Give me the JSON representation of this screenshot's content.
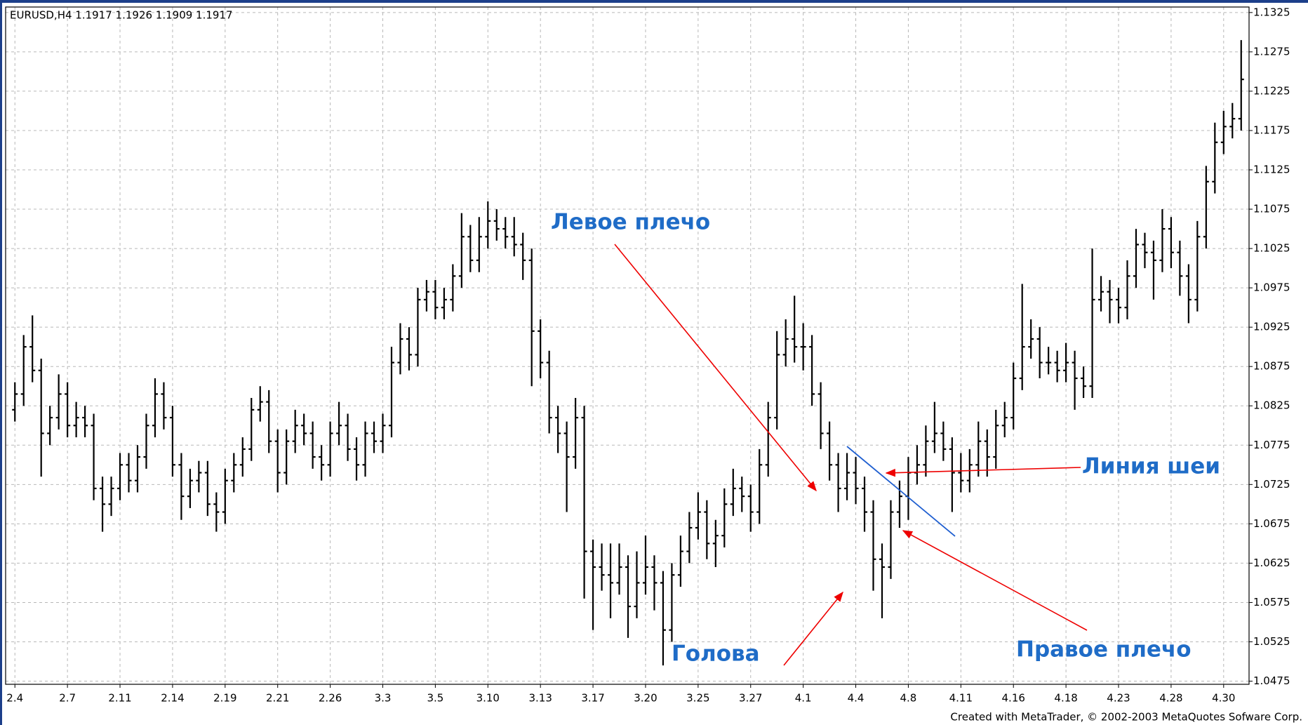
{
  "chart_data": {
    "type": "ohlc",
    "header": "EURUSD,H4  1.1917 1.1926 1.1909 1.1917",
    "footer": "Created with MetaTrader, © 2002-2003 MetaQuotes Sofware Corp.",
    "annotations": [
      "Левое плечо",
      "Голова",
      "Правое плечо",
      "Линия шеи"
    ],
    "color": "#000000",
    "grid": true,
    "ylim": [
      1.0471,
      1.1332
    ],
    "yticks": [
      1.0475,
      1.0525,
      1.0575,
      1.0625,
      1.0675,
      1.0725,
      1.0775,
      1.0825,
      1.0875,
      1.0925,
      1.0975,
      1.1025,
      1.1075,
      1.1125,
      1.1175,
      1.1225,
      1.1275,
      1.1325
    ],
    "categories": [
      "2.4",
      null,
      null,
      null,
      null,
      null,
      "2.7",
      null,
      null,
      null,
      null,
      null,
      "2.11",
      null,
      null,
      null,
      null,
      null,
      "2.14",
      null,
      null,
      null,
      null,
      null,
      "2.19",
      null,
      null,
      null,
      null,
      null,
      "2.21",
      null,
      null,
      null,
      null,
      null,
      "2.26",
      null,
      null,
      null,
      null,
      null,
      "3.3",
      null,
      null,
      null,
      null,
      null,
      "3.5",
      null,
      null,
      null,
      null,
      null,
      "3.10",
      null,
      null,
      null,
      null,
      null,
      "3.13",
      null,
      null,
      null,
      null,
      null,
      "3.17",
      null,
      null,
      null,
      null,
      null,
      "3.20",
      null,
      null,
      null,
      null,
      null,
      "3.25",
      null,
      null,
      null,
      null,
      null,
      "3.27",
      null,
      null,
      null,
      null,
      null,
      "4.1",
      null,
      null,
      null,
      null,
      null,
      "4.4",
      null,
      null,
      null,
      null,
      null,
      "4.8",
      null,
      null,
      null,
      null,
      null,
      "4.11",
      null,
      null,
      null,
      null,
      null,
      "4.16",
      null,
      null,
      null,
      null,
      null,
      "4.18",
      null,
      null,
      null,
      null,
      null,
      "4.23",
      null,
      null,
      null,
      null,
      null,
      "4.28",
      null,
      null,
      null,
      null,
      null,
      "4.30",
      null,
      null
    ],
    "open": [
      1.082,
      1.084,
      1.09,
      1.087,
      1.079,
      1.081,
      1.084,
      1.08,
      1.081,
      1.08,
      1.072,
      1.07,
      1.072,
      1.075,
      1.073,
      1.076,
      1.08,
      1.084,
      1.081,
      1.075,
      1.071,
      1.073,
      1.074,
      1.07,
      1.069,
      1.073,
      1.075,
      1.077,
      1.082,
      1.083,
      1.078,
      1.074,
      1.078,
      1.08,
      1.079,
      1.076,
      1.075,
      1.079,
      1.08,
      1.077,
      1.075,
      1.079,
      1.078,
      1.08,
      1.088,
      1.091,
      1.089,
      1.096,
      1.097,
      1.095,
      1.096,
      1.099,
      1.104,
      1.101,
      1.104,
      1.106,
      1.105,
      1.104,
      1.103,
      1.101,
      1.092,
      1.088,
      1.081,
      1.079,
      1.076,
      1.081,
      1.064,
      1.062,
      1.061,
      1.06,
      1.062,
      1.057,
      1.06,
      1.062,
      1.06,
      1.054,
      1.061,
      1.064,
      1.067,
      1.069,
      1.065,
      1.066,
      1.07,
      1.072,
      1.071,
      1.069,
      1.075,
      1.081,
      1.089,
      1.091,
      1.09,
      1.09,
      1.084,
      1.079,
      1.075,
      1.072,
      1.074,
      1.072,
      1.069,
      1.063,
      1.062,
      1.069,
      1.071,
      1.074,
      1.075,
      1.078,
      1.079,
      1.077,
      1.074,
      1.073,
      1.075,
      1.078,
      1.076,
      1.08,
      1.081,
      1.086,
      1.09,
      1.091,
      1.088,
      1.088,
      1.087,
      1.088,
      1.086,
      1.085,
      1.096,
      1.097,
      1.096,
      1.095,
      1.099,
      1.103,
      1.102,
      1.101,
      1.105,
      1.102,
      1.099,
      1.096,
      1.104,
      1.111,
      1.116,
      1.118,
      1.119
    ],
    "high": [
      1.0855,
      1.0915,
      1.094,
      1.0885,
      1.0825,
      1.0865,
      1.0855,
      1.083,
      1.0825,
      1.0815,
      1.0735,
      1.0735,
      1.0765,
      1.0765,
      1.0775,
      1.0815,
      1.086,
      1.0855,
      1.0825,
      1.0765,
      1.0745,
      1.0755,
      1.0755,
      1.0715,
      1.0745,
      1.0765,
      1.0785,
      1.0835,
      1.085,
      1.0845,
      1.0795,
      1.0795,
      1.082,
      1.0815,
      1.0805,
      1.0775,
      1.0805,
      1.083,
      1.0815,
      1.0785,
      1.0805,
      1.0805,
      1.0815,
      1.09,
      1.093,
      1.0925,
      1.0975,
      1.0985,
      1.0985,
      1.0975,
      1.1005,
      1.107,
      1.1055,
      1.1065,
      1.1085,
      1.1075,
      1.1065,
      1.1065,
      1.1045,
      1.1025,
      1.0935,
      1.0895,
      1.0825,
      1.0805,
      1.0835,
      1.0825,
      1.0655,
      1.065,
      1.065,
      1.065,
      1.0635,
      1.064,
      1.066,
      1.0635,
      1.0615,
      1.0625,
      1.066,
      1.069,
      1.0715,
      1.0705,
      1.068,
      1.072,
      1.0745,
      1.0735,
      1.0725,
      1.077,
      1.083,
      1.092,
      1.0935,
      1.0965,
      1.093,
      1.0915,
      1.0855,
      1.0805,
      1.0765,
      1.0765,
      1.076,
      1.0735,
      1.0705,
      1.065,
      1.0705,
      1.073,
      1.076,
      1.0775,
      1.08,
      1.083,
      1.0805,
      1.0785,
      1.0765,
      1.077,
      1.0805,
      1.0795,
      1.082,
      1.083,
      1.088,
      1.098,
      1.0935,
      1.0925,
      1.09,
      1.0895,
      1.0905,
      1.0895,
      1.0875,
      1.1025,
      1.099,
      1.0985,
      1.0975,
      1.101,
      1.105,
      1.1045,
      1.1035,
      1.1075,
      1.1065,
      1.1035,
      1.1005,
      1.106,
      1.113,
      1.1185,
      1.12,
      1.121,
      1.129
    ],
    "low": [
      1.0805,
      1.0825,
      1.0855,
      1.0735,
      1.0775,
      1.0795,
      1.0785,
      1.0785,
      1.0785,
      1.0705,
      1.0665,
      1.0685,
      1.0705,
      1.0715,
      1.0715,
      1.0745,
      1.0785,
      1.0795,
      1.0735,
      1.068,
      1.0695,
      1.0715,
      1.0685,
      1.0665,
      1.0675,
      1.0715,
      1.0735,
      1.0755,
      1.0805,
      1.0765,
      1.0715,
      1.0725,
      1.0765,
      1.0775,
      1.0745,
      1.073,
      1.0735,
      1.0775,
      1.0755,
      1.073,
      1.0735,
      1.0765,
      1.0765,
      1.0785,
      1.0865,
      1.087,
      1.0875,
      1.0945,
      1.0935,
      1.0935,
      1.0945,
      1.0975,
      1.0995,
      1.0995,
      1.1025,
      1.1035,
      1.1025,
      1.1015,
      1.0985,
      1.085,
      1.086,
      1.079,
      1.0765,
      1.069,
      1.0745,
      1.058,
      1.054,
      1.059,
      1.0555,
      1.0585,
      1.053,
      1.0555,
      1.0585,
      1.0565,
      1.0495,
      1.0525,
      1.0595,
      1.0625,
      1.0655,
      1.063,
      1.062,
      1.0645,
      1.0685,
      1.069,
      1.0665,
      1.0675,
      1.0735,
      1.0795,
      1.0875,
      1.088,
      1.087,
      1.0825,
      1.077,
      1.073,
      1.069,
      1.0705,
      1.07,
      1.0665,
      1.059,
      1.0555,
      1.0605,
      1.067,
      1.068,
      1.0725,
      1.0735,
      1.0765,
      1.0755,
      1.069,
      1.0715,
      1.0715,
      1.0735,
      1.0735,
      1.0745,
      1.0785,
      1.0795,
      1.0845,
      1.0885,
      1.086,
      1.0865,
      1.0855,
      1.0855,
      1.082,
      1.0835,
      1.0835,
      1.0945,
      1.093,
      1.093,
      1.0935,
      1.0975,
      1.1,
      1.096,
      1.0995,
      1.1,
      1.0965,
      1.093,
      1.0945,
      1.1025,
      1.1095,
      1.1145,
      1.1165,
      1.1175
    ],
    "close": [
      1.084,
      1.09,
      1.087,
      1.079,
      1.081,
      1.084,
      1.08,
      1.081,
      1.08,
      1.072,
      1.07,
      1.072,
      1.075,
      1.073,
      1.076,
      1.08,
      1.084,
      1.081,
      1.075,
      1.071,
      1.073,
      1.074,
      1.07,
      1.069,
      1.073,
      1.075,
      1.077,
      1.082,
      1.083,
      1.078,
      1.074,
      1.078,
      1.08,
      1.079,
      1.076,
      1.075,
      1.079,
      1.08,
      1.077,
      1.075,
      1.079,
      1.078,
      1.08,
      1.088,
      1.091,
      1.089,
      1.096,
      1.097,
      1.095,
      1.096,
      1.099,
      1.104,
      1.101,
      1.104,
      1.106,
      1.105,
      1.104,
      1.103,
      1.101,
      1.092,
      1.088,
      1.081,
      1.079,
      1.076,
      1.081,
      1.064,
      1.062,
      1.061,
      1.06,
      1.062,
      1.057,
      1.06,
      1.062,
      1.06,
      1.054,
      1.061,
      1.064,
      1.067,
      1.069,
      1.065,
      1.066,
      1.07,
      1.072,
      1.071,
      1.069,
      1.075,
      1.081,
      1.089,
      1.091,
      1.09,
      1.09,
      1.084,
      1.079,
      1.075,
      1.072,
      1.074,
      1.072,
      1.069,
      1.063,
      1.062,
      1.069,
      1.071,
      1.074,
      1.075,
      1.078,
      1.079,
      1.077,
      1.074,
      1.073,
      1.075,
      1.078,
      1.076,
      1.08,
      1.081,
      1.086,
      1.09,
      1.091,
      1.088,
      1.088,
      1.087,
      1.088,
      1.086,
      1.085,
      1.096,
      1.097,
      1.096,
      1.095,
      1.099,
      1.103,
      1.102,
      1.101,
      1.105,
      1.102,
      1.099,
      1.096,
      1.104,
      1.111,
      1.116,
      1.118,
      1.119,
      1.124
    ]
  }
}
